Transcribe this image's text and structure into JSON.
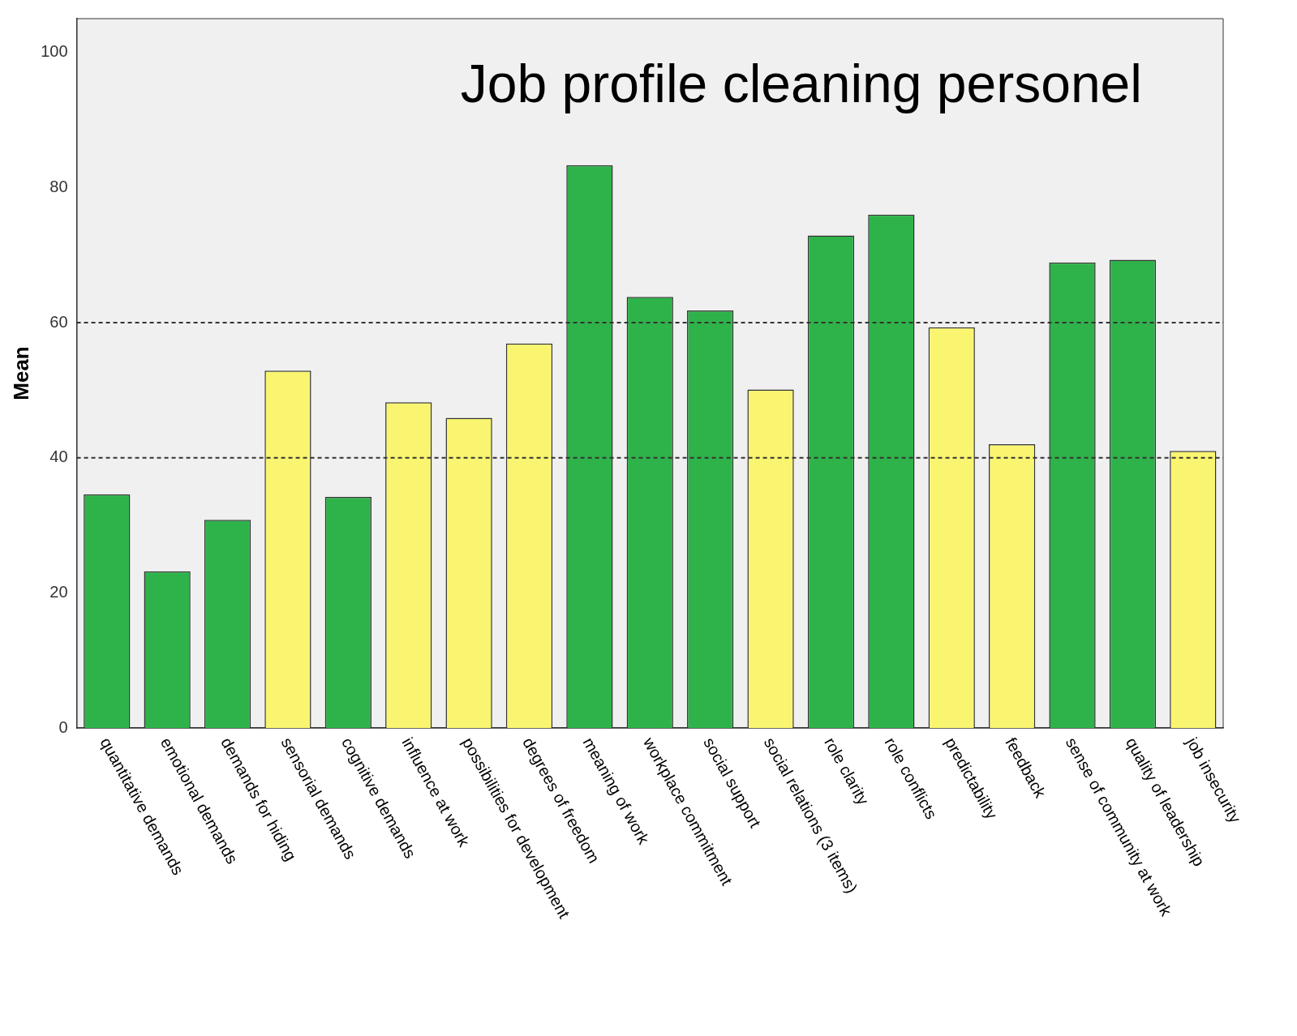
{
  "chart_data": {
    "type": "bar",
    "title": "Job profile cleaning personel",
    "ylabel": "Mean",
    "categories": [
      "quantitative demands",
      "emotional demands",
      "demands for hiding",
      "sensorial demands",
      "cognitive demands",
      "influence at work",
      "possibilities for development",
      "degrees of freedom",
      "meaning of work",
      "workplace commitment",
      "social support",
      "social relations (3 items)",
      "role clarity",
      "role conflicts",
      "predictability",
      "feedback",
      "sense of community at work",
      "quality of leadership",
      "job insecurity"
    ],
    "values": [
      34.6,
      23.2,
      30.8,
      52.9,
      34.2,
      48.2,
      45.9,
      56.9,
      83.3,
      63.8,
      61.8,
      50.1,
      72.9,
      76.0,
      59.3,
      42.0,
      68.9,
      69.3,
      41.0
    ],
    "colors": [
      "#2eb34a",
      "#2eb34a",
      "#2eb34a",
      "#f9f570",
      "#2eb34a",
      "#f9f570",
      "#f9f570",
      "#f9f570",
      "#2eb34a",
      "#2eb34a",
      "#2eb34a",
      "#f9f570",
      "#2eb34a",
      "#2eb34a",
      "#f9f570",
      "#f9f570",
      "#2eb34a",
      "#2eb34a",
      "#f9f570"
    ],
    "ylim": [
      0,
      105
    ],
    "yticks": [
      0,
      20,
      40,
      60,
      80,
      100
    ],
    "grid": false,
    "legend": false,
    "ref_lines": [
      {
        "axis": "y",
        "value": 40,
        "line_style": "dashed"
      },
      {
        "axis": "y",
        "value": 60,
        "line_style": "dashed"
      }
    ]
  }
}
